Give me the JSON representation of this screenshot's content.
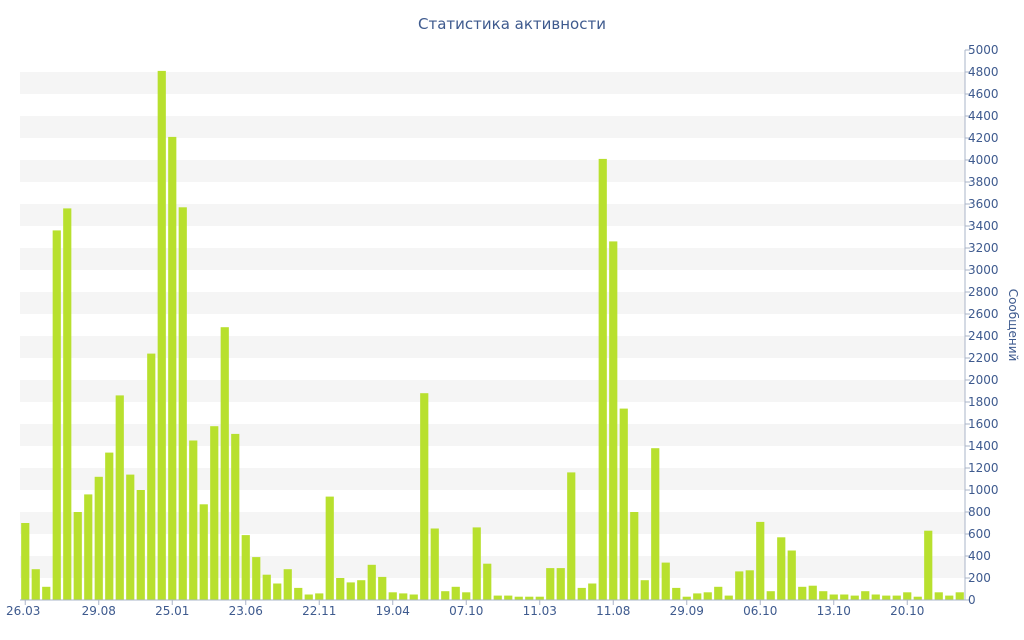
{
  "chart_data": {
    "type": "bar",
    "title": "Статистика активности",
    "ylabel": "Сообщений",
    "xlabel": "",
    "ylim": [
      0,
      5000
    ],
    "y_ticks": [
      0,
      200,
      400,
      600,
      800,
      1000,
      1200,
      1400,
      1600,
      1800,
      2000,
      2200,
      2400,
      2600,
      2800,
      3000,
      3200,
      3400,
      3600,
      3800,
      4000,
      4200,
      4400,
      4600,
      4800,
      5000
    ],
    "y_axis_side": "right",
    "grid": "alternating horizontal bands",
    "bar_color": "#b8e02e",
    "band_color": "#f5f5f5",
    "text_color": "#3e5a8e",
    "x_tick_labels": [
      {
        "index": 0,
        "label": "26.03"
      },
      {
        "index": 7,
        "label": "29.08"
      },
      {
        "index": 14,
        "label": "25.01"
      },
      {
        "index": 21,
        "label": "23.06"
      },
      {
        "index": 28,
        "label": "22.11"
      },
      {
        "index": 35,
        "label": "19.04"
      },
      {
        "index": 42,
        "label": "07.10"
      },
      {
        "index": 49,
        "label": "11.03"
      },
      {
        "index": 56,
        "label": "11.08"
      },
      {
        "index": 63,
        "label": "29.09"
      },
      {
        "index": 70,
        "label": "06.10"
      },
      {
        "index": 77,
        "label": "13.10"
      },
      {
        "index": 84,
        "label": "20.10"
      }
    ],
    "values": [
      700,
      280,
      120,
      3360,
      3560,
      800,
      960,
      1120,
      1340,
      1860,
      1140,
      1000,
      2240,
      4810,
      4210,
      3570,
      1450,
      870,
      1580,
      2480,
      1510,
      590,
      390,
      230,
      150,
      280,
      110,
      50,
      60,
      940,
      200,
      160,
      180,
      320,
      210,
      70,
      60,
      50,
      1880,
      650,
      80,
      120,
      70,
      660,
      330,
      40,
      40,
      30,
      30,
      30,
      290,
      290,
      1160,
      110,
      150,
      4010,
      3260,
      1740,
      800,
      180,
      1380,
      340,
      110,
      30,
      60,
      70,
      120,
      40,
      260,
      270,
      710,
      80,
      570,
      450,
      120,
      130,
      80,
      50,
      50,
      40,
      80,
      50,
      40,
      40,
      70,
      30,
      630,
      70,
      40,
      70
    ]
  }
}
